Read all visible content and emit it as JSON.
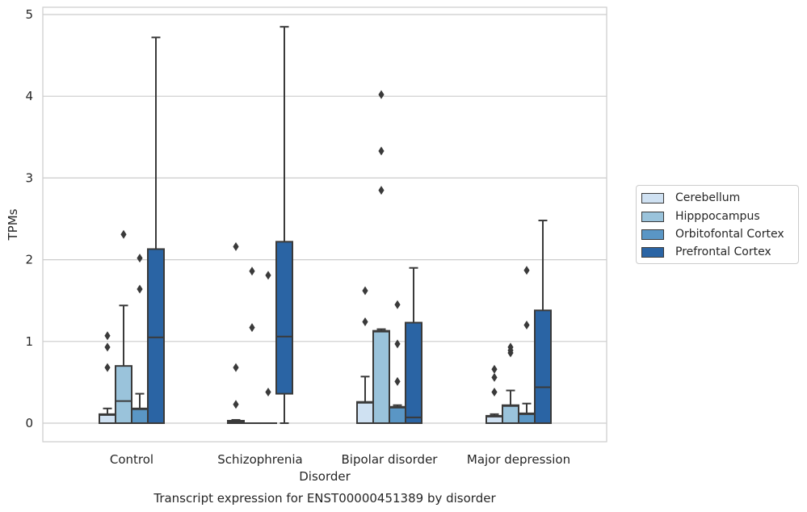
{
  "chart_data": {
    "type": "box",
    "title": "Transcript expression for ENST00000451389 by disorder",
    "xlabel": "Disorder",
    "ylabel": "TPMs",
    "ylim": [
      -0.23,
      5.1
    ],
    "yticks": [
      0,
      1,
      2,
      3,
      4,
      5
    ],
    "grid": true,
    "legend_position": "right",
    "categories": [
      "Control",
      "Schizophrenia",
      "Bipolar disorder",
      "Major depression"
    ],
    "series": [
      {
        "name": "Cerebellum",
        "color": "#cfe1f2",
        "boxes": [
          {
            "low": 0.0,
            "q1": 0.0,
            "median": 0.1,
            "q3": 0.11,
            "high": 0.18,
            "outliers": [
              0.68,
              0.93,
              1.07
            ]
          },
          {
            "low": 0.0,
            "q1": 0.0,
            "median": 0.02,
            "q3": 0.03,
            "high": 0.04,
            "outliers": [
              0.23,
              0.68,
              2.16
            ]
          },
          {
            "low": 0.0,
            "q1": 0.0,
            "median": 0.25,
            "q3": 0.26,
            "high": 0.57,
            "outliers": [
              1.24,
              1.62
            ]
          },
          {
            "low": 0.0,
            "q1": 0.0,
            "median": 0.08,
            "q3": 0.09,
            "high": 0.11,
            "outliers": [
              0.38,
              0.56,
              0.66
            ]
          }
        ]
      },
      {
        "name": "Hipppocampus",
        "color": "#9ac3db",
        "boxes": [
          {
            "low": 0.0,
            "q1": 0.0,
            "median": 0.27,
            "q3": 0.7,
            "high": 1.44,
            "outliers": [
              2.31
            ]
          },
          {
            "low": 0.0,
            "q1": 0.0,
            "median": 0.0,
            "q3": 0.0,
            "high": 0.0,
            "outliers": [
              1.17,
              1.86
            ]
          },
          {
            "low": 0.0,
            "q1": 0.0,
            "median": 1.12,
            "q3": 1.13,
            "high": 1.15,
            "outliers": [
              2.85,
              3.33,
              4.02
            ]
          },
          {
            "low": 0.0,
            "q1": 0.0,
            "median": 0.21,
            "q3": 0.22,
            "high": 0.4,
            "outliers": [
              0.86,
              0.89,
              0.93
            ]
          }
        ]
      },
      {
        "name": "Orbitofontal Cortex",
        "color": "#5a96c5",
        "boxes": [
          {
            "low": 0.0,
            "q1": 0.0,
            "median": 0.17,
            "q3": 0.18,
            "high": 0.36,
            "outliers": [
              1.64,
              2.02
            ]
          },
          {
            "low": 0.0,
            "q1": 0.0,
            "median": 0.0,
            "q3": 0.0,
            "high": 0.0,
            "outliers": [
              0.38,
              1.81
            ]
          },
          {
            "low": 0.0,
            "q1": 0.0,
            "median": 0.19,
            "q3": 0.2,
            "high": 0.22,
            "outliers": [
              0.51,
              0.97,
              1.45
            ]
          },
          {
            "low": 0.0,
            "q1": 0.0,
            "median": 0.11,
            "q3": 0.12,
            "high": 0.24,
            "outliers": [
              1.2,
              1.87
            ]
          }
        ]
      },
      {
        "name": "Prefrontal Cortex",
        "color": "#2a64a4",
        "boxes": [
          {
            "low": 0.0,
            "q1": 0.0,
            "median": 1.05,
            "q3": 2.13,
            "high": 4.72,
            "outliers": []
          },
          {
            "low": 0.0,
            "q1": 0.36,
            "median": 1.06,
            "q3": 2.22,
            "high": 4.85,
            "outliers": []
          },
          {
            "low": 0.0,
            "q1": 0.0,
            "median": 0.07,
            "q3": 1.23,
            "high": 1.9,
            "outliers": []
          },
          {
            "low": 0.0,
            "q1": 0.0,
            "median": 0.44,
            "q3": 1.38,
            "high": 2.48,
            "outliers": []
          }
        ]
      }
    ]
  }
}
